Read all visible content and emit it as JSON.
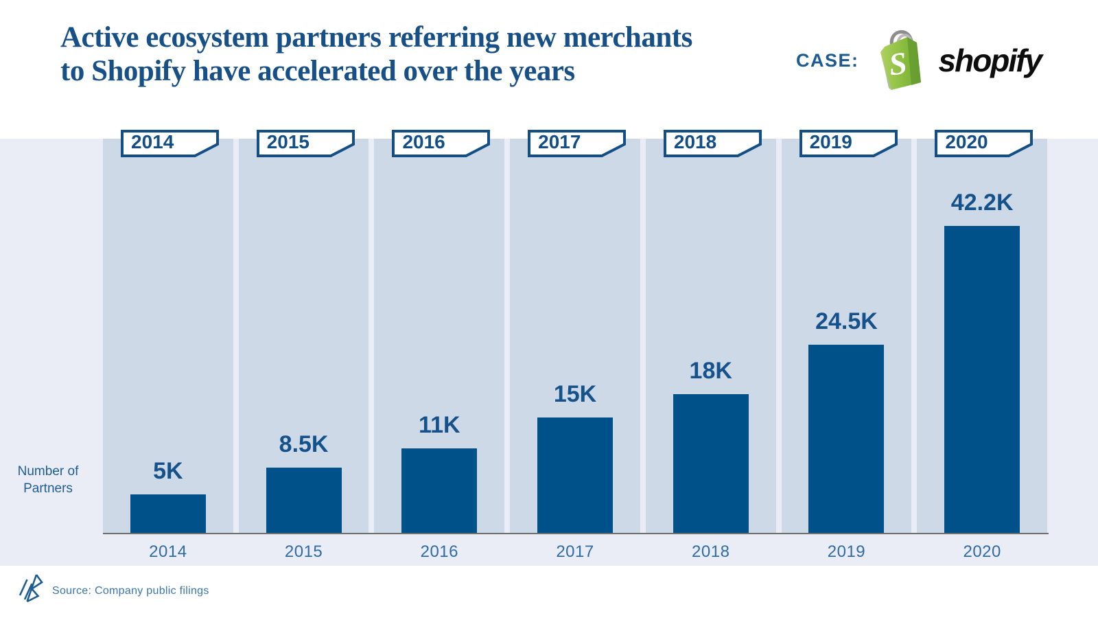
{
  "header": {
    "title_line1": "Active ecosystem partners referring new merchants",
    "title_line2": "to Shopify have accelerated over the years",
    "case_label": "CASE:",
    "brand_wordmark": "shopify",
    "brand_bag_letter": "S"
  },
  "chart_data": {
    "type": "bar",
    "title": "Active ecosystem partners referring new merchants to Shopify have accelerated over the years",
    "categories": [
      "2014",
      "2015",
      "2016",
      "2017",
      "2018",
      "2019",
      "2020"
    ],
    "values": [
      5,
      8.5,
      11,
      15,
      18,
      24.5,
      42.2
    ],
    "value_labels": [
      "5K",
      "8.5K",
      "11K",
      "15K",
      "18K",
      "24.5K",
      "42.2K"
    ],
    "unit": "thousands of partners",
    "ylabel": "Number of Partners",
    "ylabel_line1": "Number of",
    "ylabel_line2": "Partners",
    "xlabel": "",
    "ylim": [
      0,
      45
    ],
    "grid": false,
    "legend": "none",
    "bar_color": "#00518a",
    "column_bg_color": "#cdd9e7",
    "band_bg_color": "#eaedf5",
    "axis_line_color": "#6f6f6f",
    "label_color": "#15518a",
    "tag_border_color": "#134f86"
  },
  "footer": {
    "source": "Source: Company public filings"
  },
  "icons": {
    "shopify_bag": "green shopping bag with white S",
    "brand_mark": "diagonal strokes monogram"
  },
  "colors": {
    "title_blue": "#174f87",
    "case_blue": "#1c5a92",
    "tick_blue": "#2f6ba7",
    "source_blue": "#3a76ad",
    "shopify_green": "#8bbd3f"
  }
}
